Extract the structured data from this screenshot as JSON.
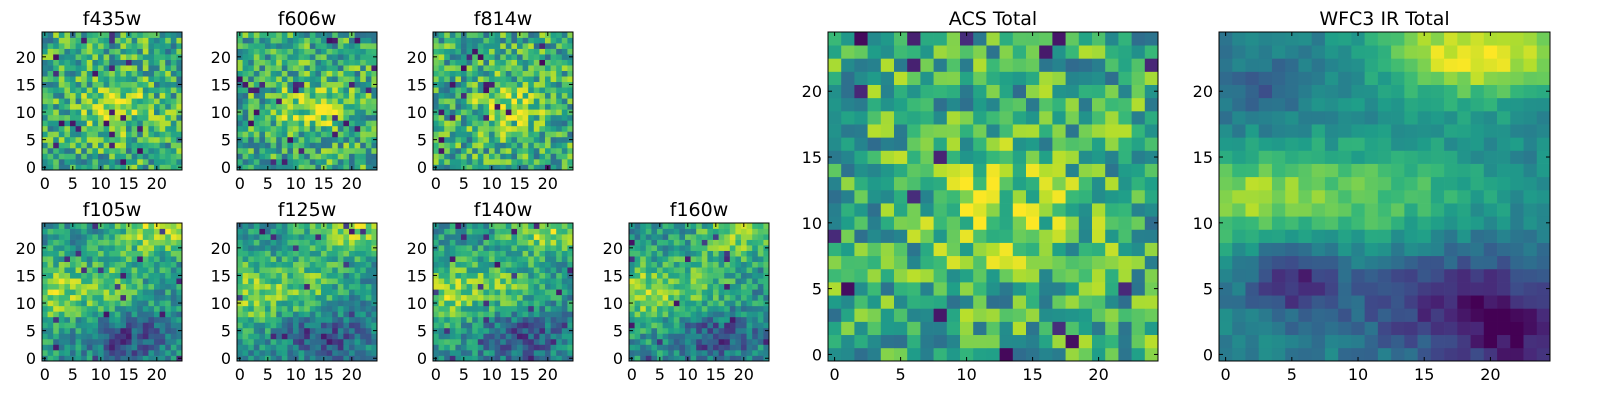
{
  "colormap": "viridis",
  "grid": false,
  "chart_data": [
    {
      "type": "heatmap",
      "title": "f435w",
      "size": 25,
      "pattern": "noisy",
      "seed": 11,
      "xticks": [
        0,
        5,
        10,
        15,
        20
      ],
      "yticks": [
        0,
        5,
        10,
        15,
        20
      ],
      "xlim": [
        -0.5,
        24.5
      ],
      "ylim": [
        -0.5,
        24.5
      ]
    },
    {
      "type": "heatmap",
      "title": "f606w",
      "size": 25,
      "pattern": "noisy",
      "seed": 23,
      "xticks": [
        0,
        5,
        10,
        15,
        20
      ],
      "yticks": [
        0,
        5,
        10,
        15,
        20
      ],
      "xlim": [
        -0.5,
        24.5
      ],
      "ylim": [
        -0.5,
        24.5
      ]
    },
    {
      "type": "heatmap",
      "title": "f814w",
      "size": 25,
      "pattern": "noisy",
      "seed": 37,
      "xticks": [
        0,
        5,
        10,
        15,
        20
      ],
      "yticks": [
        0,
        5,
        10,
        15,
        20
      ],
      "xlim": [
        -0.5,
        24.5
      ],
      "ylim": [
        -0.5,
        24.5
      ]
    },
    {
      "type": "heatmap",
      "title": "f105w",
      "size": 25,
      "pattern": "smooth",
      "seed": 41,
      "xticks": [
        0,
        5,
        10,
        15,
        20
      ],
      "yticks": [
        0,
        5,
        10,
        15,
        20
      ],
      "xlim": [
        -0.5,
        24.5
      ],
      "ylim": [
        -0.5,
        24.5
      ]
    },
    {
      "type": "heatmap",
      "title": "f125w",
      "size": 25,
      "pattern": "smooth",
      "seed": 53,
      "xticks": [
        0,
        5,
        10,
        15,
        20
      ],
      "yticks": [
        0,
        5,
        10,
        15,
        20
      ],
      "xlim": [
        -0.5,
        24.5
      ],
      "ylim": [
        -0.5,
        24.5
      ]
    },
    {
      "type": "heatmap",
      "title": "f140w",
      "size": 25,
      "pattern": "smooth",
      "seed": 67,
      "xticks": [
        0,
        5,
        10,
        15,
        20
      ],
      "yticks": [
        0,
        5,
        10,
        15,
        20
      ],
      "xlim": [
        -0.5,
        24.5
      ],
      "ylim": [
        -0.5,
        24.5
      ]
    },
    {
      "type": "heatmap",
      "title": "f160w",
      "size": 25,
      "pattern": "smooth",
      "seed": 79,
      "xticks": [
        0,
        5,
        10,
        15,
        20
      ],
      "yticks": [
        0,
        5,
        10,
        15,
        20
      ],
      "xlim": [
        -0.5,
        24.5
      ],
      "ylim": [
        -0.5,
        24.5
      ]
    },
    {
      "type": "heatmap",
      "title": "ACS Total",
      "size": 25,
      "pattern": "noisy",
      "seed": 97,
      "xticks": [
        0,
        5,
        10,
        15,
        20
      ],
      "yticks": [
        0,
        5,
        10,
        15,
        20
      ],
      "xlim": [
        -0.5,
        24.5
      ],
      "ylim": [
        -0.5,
        24.5
      ]
    },
    {
      "type": "heatmap",
      "title": "WFC3 IR Total",
      "size": 25,
      "pattern": "ir",
      "seed": 113,
      "xticks": [
        0,
        5,
        10,
        15,
        20
      ],
      "yticks": [
        0,
        5,
        10,
        15,
        20
      ],
      "xlim": [
        -0.5,
        24.5
      ],
      "ylim": [
        -0.5,
        24.5
      ]
    }
  ]
}
